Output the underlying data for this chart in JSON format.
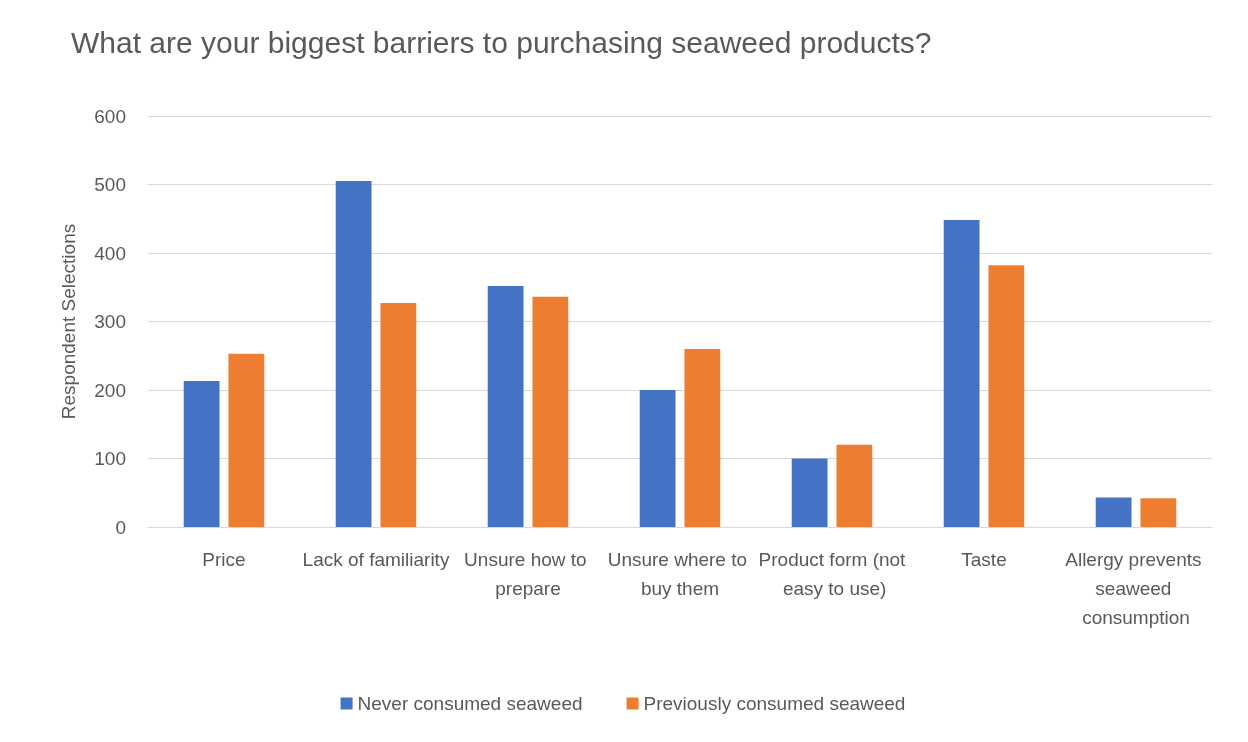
{
  "chart_data": {
    "type": "bar",
    "title": "What are your biggest barriers to purchasing seaweed products?",
    "ylabel": "Respondent Selections",
    "categories": [
      "Price",
      "Lack of familiarity",
      "Unsure how to prepare",
      "Unsure where to buy them",
      "Product form (not easy to use)",
      "Taste",
      "Allergy prevents seaweed consumption"
    ],
    "series": [
      {
        "name": "Never consumed seaweed",
        "color": "#4472c4",
        "values": [
          213,
          505,
          352,
          200,
          100,
          448,
          43
        ]
      },
      {
        "name": "Previously consumed seaweed",
        "color": "#ed7d31",
        "values": [
          253,
          327,
          336,
          260,
          120,
          382,
          42
        ]
      }
    ],
    "ylim": [
      0,
      600
    ],
    "yticks": [
      0,
      100,
      200,
      300,
      400,
      500,
      600
    ],
    "grid": "y",
    "legend": "bottom"
  }
}
